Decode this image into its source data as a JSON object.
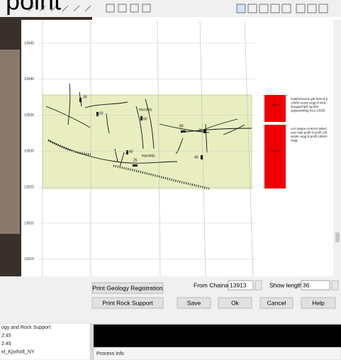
{
  "title_fragment": "point",
  "axis_labels": [
    13945,
    13940,
    13935,
    13930,
    13925,
    13920,
    13915
  ],
  "annotations": [
    "30",
    "60",
    "Hornfels",
    "60",
    "80",
    "30",
    "40",
    "25",
    "Hornfels",
    "40"
  ],
  "legend": [
    {
      "code": "Sek 6",
      "description": [
        "Svakhetssone går fram til p",
        "13935 vestre vegg til midt",
        "henggod fjell og ikke",
        "oppsprekking fra p 13935"
      ]
    },
    {
      "code": "SEK 6",
      "description": [
        "Leir sleppe ca 80cm tykkel",
        "over hele profil til profil 139",
        "vestre vegg til profil 13925 i",
        "vegg."
      ]
    }
  ],
  "controls": {
    "print_geology": "Print Geology Registration",
    "from_label": "From Chainag",
    "from_value": "13913",
    "length_label": "Show length",
    "length_value": "36",
    "print_rock": "Print Rock Support",
    "save": "Save",
    "ok": "Ok",
    "cancel": "Cancel",
    "help": "Help"
  },
  "side_panel": {
    "items": [
      "ogy and Rock Support",
      "2:45",
      "2:45",
      "el_Kjorholt_NY"
    ]
  },
  "process_panel": {
    "title": "Process Info"
  }
}
